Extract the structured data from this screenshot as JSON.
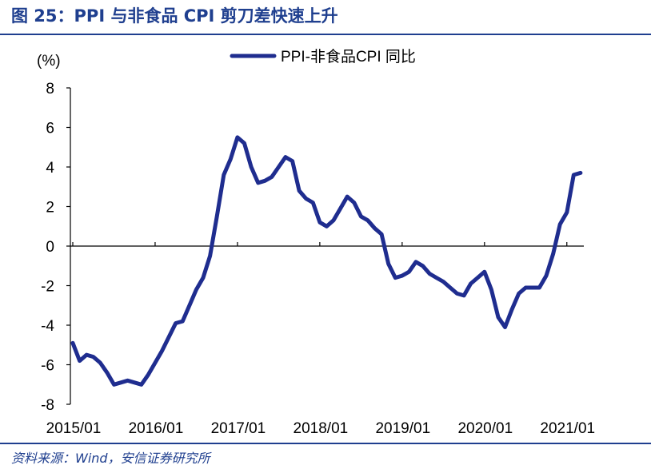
{
  "figure": {
    "title": "图 25：PPI 与非食品 CPI 剪刀差快速上升",
    "source": "资料来源：Wind，安信证券研究所"
  },
  "chart_data": {
    "type": "line",
    "ylabel": "(%)",
    "ylim": [
      -8,
      8
    ],
    "y_ticks": [
      "8",
      "6",
      "4",
      "2",
      "0",
      "-2",
      "-4",
      "-6",
      "-8"
    ],
    "x_tick_labels": [
      "2015/01",
      "2016/01",
      "2017/01",
      "2018/01",
      "2019/01",
      "2020/01",
      "2021/01"
    ],
    "legend_position": "top-center",
    "line_color": "#1f2d8f",
    "grid": false,
    "series": [
      {
        "name": "PPI-非食品CPI 同比",
        "x": [
          "2015/01",
          "2015/02",
          "2015/03",
          "2015/04",
          "2015/05",
          "2015/06",
          "2015/07",
          "2015/08",
          "2015/09",
          "2015/10",
          "2015/11",
          "2015/12",
          "2016/01",
          "2016/02",
          "2016/03",
          "2016/04",
          "2016/05",
          "2016/06",
          "2016/07",
          "2016/08",
          "2016/09",
          "2016/10",
          "2016/11",
          "2016/12",
          "2017/01",
          "2017/02",
          "2017/03",
          "2017/04",
          "2017/05",
          "2017/06",
          "2017/07",
          "2017/08",
          "2017/09",
          "2017/10",
          "2017/11",
          "2017/12",
          "2018/01",
          "2018/02",
          "2018/03",
          "2018/04",
          "2018/05",
          "2018/06",
          "2018/07",
          "2018/08",
          "2018/09",
          "2018/10",
          "2018/11",
          "2018/12",
          "2019/01",
          "2019/02",
          "2019/03",
          "2019/04",
          "2019/05",
          "2019/06",
          "2019/07",
          "2019/08",
          "2019/09",
          "2019/10",
          "2019/11",
          "2019/12",
          "2020/01",
          "2020/02",
          "2020/03",
          "2020/04",
          "2020/05",
          "2020/06",
          "2020/07",
          "2020/08",
          "2020/09",
          "2020/10",
          "2020/11",
          "2020/12",
          "2021/01",
          "2021/02",
          "2021/03"
        ],
        "values": [
          -4.9,
          -5.8,
          -5.5,
          -5.6,
          -5.9,
          -6.4,
          -7.0,
          -6.9,
          -6.8,
          -6.9,
          -7.0,
          -6.5,
          -5.9,
          -5.3,
          -4.6,
          -3.9,
          -3.8,
          -3.0,
          -2.2,
          -1.6,
          -0.5,
          1.5,
          3.6,
          4.4,
          5.5,
          5.2,
          4.0,
          3.2,
          3.3,
          3.5,
          4.0,
          4.5,
          4.3,
          2.8,
          2.4,
          2.2,
          1.2,
          1.0,
          1.3,
          1.9,
          2.5,
          2.2,
          1.5,
          1.3,
          0.9,
          0.6,
          -0.9,
          -1.6,
          -1.5,
          -1.3,
          -0.8,
          -1.0,
          -1.4,
          -1.6,
          -1.8,
          -2.1,
          -2.4,
          -2.5,
          -1.9,
          -1.6,
          -1.3,
          -2.2,
          -3.6,
          -4.1,
          -3.2,
          -2.4,
          -2.1,
          -2.1,
          -2.1,
          -1.5,
          -0.4,
          1.1,
          1.7,
          3.6,
          3.7
        ]
      }
    ]
  }
}
